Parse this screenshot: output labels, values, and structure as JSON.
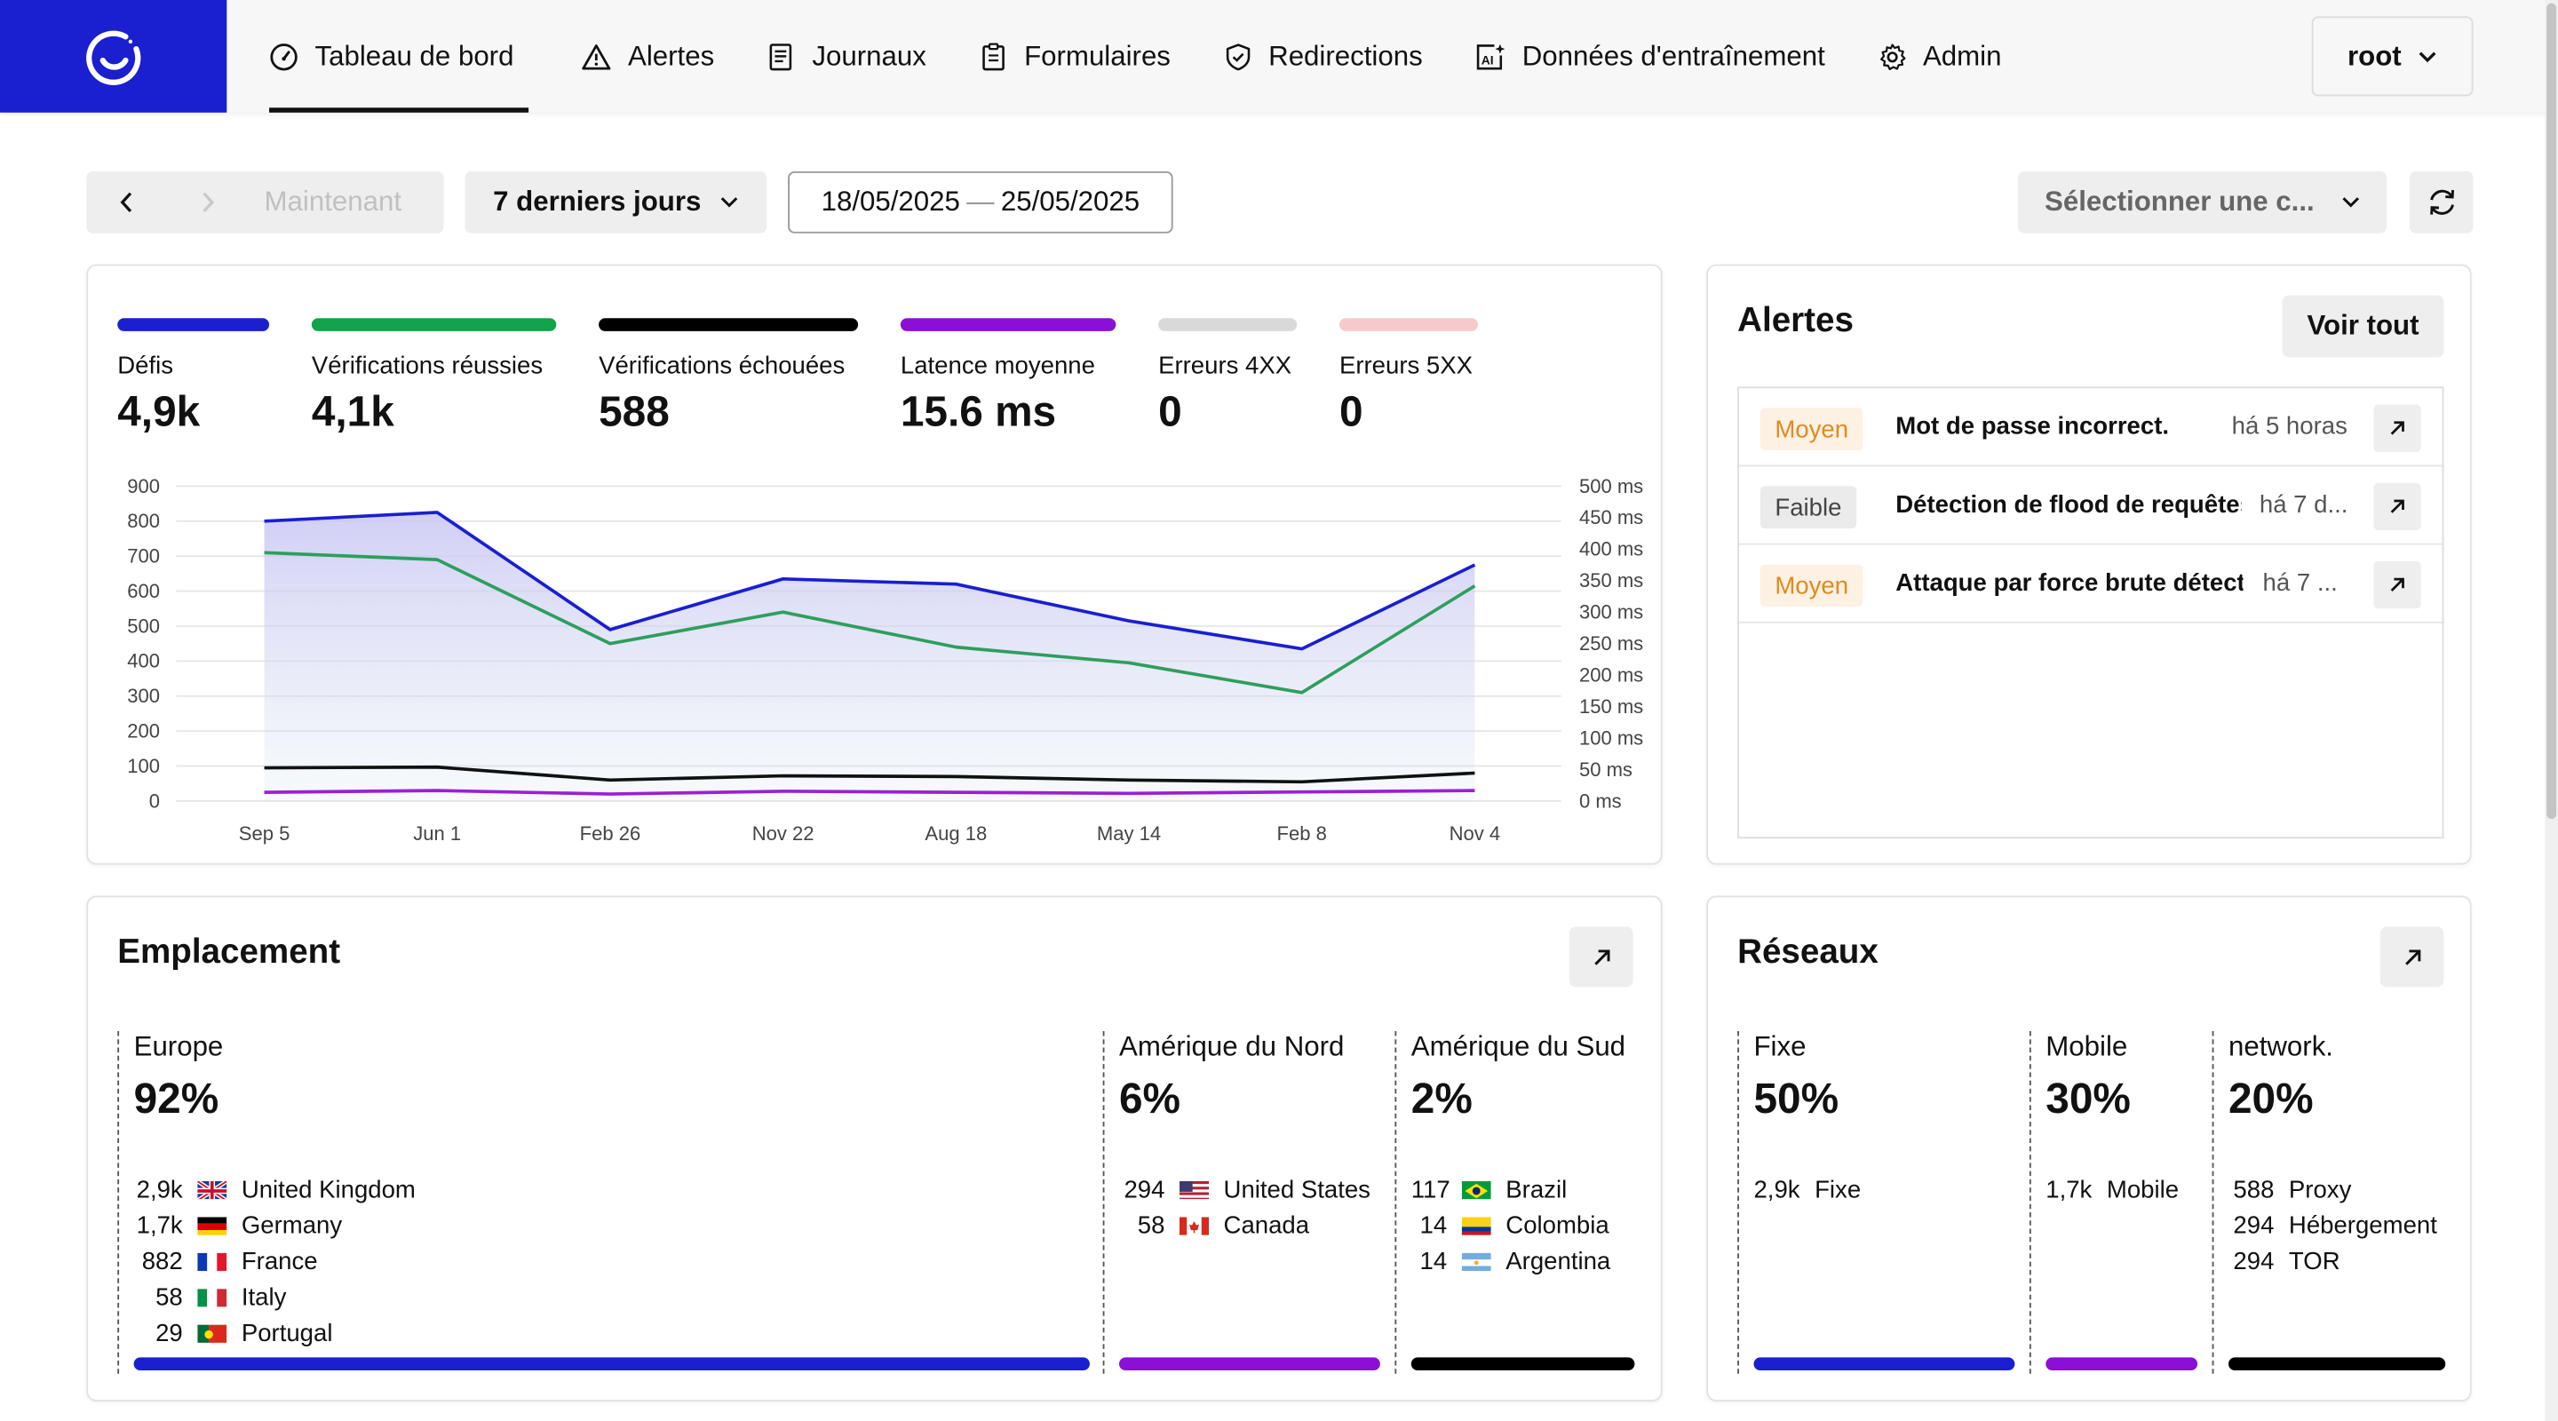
{
  "nav": {
    "items": [
      {
        "label": "Tableau de bord",
        "icon": "gauge-icon"
      },
      {
        "label": "Alertes",
        "icon": "warning-icon"
      },
      {
        "label": "Journaux",
        "icon": "log-icon"
      },
      {
        "label": "Formulaires",
        "icon": "clipboard-icon"
      },
      {
        "label": "Redirections",
        "icon": "shield-icon"
      },
      {
        "label": "Données d'entraînement",
        "icon": "ai-image-icon"
      },
      {
        "label": "Admin",
        "icon": "gear-icon"
      }
    ],
    "user": "root"
  },
  "toolbar": {
    "now_label": "Maintenant",
    "period": "7 derniers jours",
    "date_from": "18/05/2025",
    "date_sep": "—",
    "date_to": "25/05/2025",
    "select_placeholder": "Sélectionner une c..."
  },
  "metrics": [
    {
      "label": "Défis",
      "value": "4,9k",
      "color": "#1a1fd0"
    },
    {
      "label": "Vérifications réussies",
      "value": "4,1k",
      "color": "#13a34a"
    },
    {
      "label": "Vérifications échouées",
      "value": "588",
      "color": "#000000"
    },
    {
      "label": "Latence moyenne",
      "value": "15.6 ms",
      "color": "#8b0fd6"
    },
    {
      "label": "Erreurs 4XX",
      "value": "0",
      "color": "#d9d9d9"
    },
    {
      "label": "Erreurs 5XX",
      "value": "0",
      "color": "#f6caca"
    }
  ],
  "chart_data": {
    "type": "line",
    "categories": [
      "Sep 5",
      "Jun 1",
      "Feb 26",
      "Nov 22",
      "Aug 18",
      "May 14",
      "Feb 8",
      "Nov 4"
    ],
    "x": [
      "Sep 5",
      "",
      "Jun 1",
      "Feb 26",
      "Nov 22",
      "Aug 18",
      "May 14",
      "Feb 8",
      "Nov 4"
    ],
    "series": [
      {
        "values": [
          800,
          825,
          490,
          635,
          620,
          515,
          435,
          675
        ],
        "color": "#1a1fd0",
        "fill": true
      },
      {
        "values": [
          710,
          690,
          450,
          540,
          440,
          395,
          310,
          615
        ],
        "color": "#2e9e5e",
        "fill": false
      },
      {
        "values": [
          95,
          97,
          60,
          72,
          70,
          60,
          55,
          80
        ],
        "color": "#111111",
        "fill": false
      },
      {
        "values": [
          25,
          30,
          20,
          28,
          25,
          22,
          26,
          30
        ],
        "color": "#9b1fd6",
        "fill": false
      }
    ],
    "ylim": [
      0,
      900
    ],
    "yticks": [
      0,
      100,
      200,
      300,
      400,
      500,
      600,
      700,
      800,
      900
    ],
    "y2lim": [
      0,
      500
    ],
    "y2ticks": [
      "0 ms",
      "50 ms",
      "100 ms",
      "150 ms",
      "200 ms",
      "250 ms",
      "300 ms",
      "350 ms",
      "400 ms",
      "450 ms",
      "500 ms"
    ],
    "grid": true
  },
  "alerts": {
    "title": "Alertes",
    "view_all": "Voir tout",
    "items": [
      {
        "severity": "Moyen",
        "level": "med",
        "message": "Mot de passe incorrect.",
        "time": "há 5 horas"
      },
      {
        "severity": "Faible",
        "level": "low",
        "message": "Détection de flood de requêtes",
        "time": "há 7 d..."
      },
      {
        "severity": "Moyen",
        "level": "med",
        "message": "Attaque par force brute détectée",
        "time": "há 7 ..."
      }
    ]
  },
  "location": {
    "title": "Emplacement",
    "regions": [
      {
        "name": "Europe",
        "pct": "92%",
        "color": "#1a1fd0",
        "rows": [
          {
            "count": "2,9k",
            "country": "United Kingdom",
            "flag": "gb"
          },
          {
            "count": "1,7k",
            "country": "Germany",
            "flag": "de"
          },
          {
            "count": "882",
            "country": "France",
            "flag": "fr"
          },
          {
            "count": "58",
            "country": "Italy",
            "flag": "it"
          },
          {
            "count": "29",
            "country": "Portugal",
            "flag": "pt"
          }
        ]
      },
      {
        "name": "Amérique du Nord",
        "pct": "6%",
        "color": "#8b0fd6",
        "rows": [
          {
            "count": "294",
            "country": "United States",
            "flag": "us"
          },
          {
            "count": "58",
            "country": "Canada",
            "flag": "ca"
          }
        ]
      },
      {
        "name": "Amérique du Sud",
        "pct": "2%",
        "color": "#000000",
        "rows": [
          {
            "count": "117",
            "country": "Brazil",
            "flag": "br"
          },
          {
            "count": "14",
            "country": "Colombia",
            "flag": "co"
          },
          {
            "count": "14",
            "country": "Argentina",
            "flag": "ar"
          }
        ]
      }
    ]
  },
  "networks": {
    "title": "Réseaux",
    "groups": [
      {
        "name": "Fixe",
        "pct": "50%",
        "color": "#1a1fd0",
        "rows": [
          {
            "count": "2,9k",
            "label": "Fixe"
          }
        ]
      },
      {
        "name": "Mobile",
        "pct": "30%",
        "color": "#8b0fd6",
        "rows": [
          {
            "count": "1,7k",
            "label": "Mobile"
          }
        ]
      },
      {
        "name": "network.",
        "pct": "20%",
        "color": "#000000",
        "rows": [
          {
            "count": "588",
            "label": "Proxy"
          },
          {
            "count": "294",
            "label": "Hébergement"
          },
          {
            "count": "294",
            "label": "TOR"
          }
        ]
      }
    ]
  }
}
